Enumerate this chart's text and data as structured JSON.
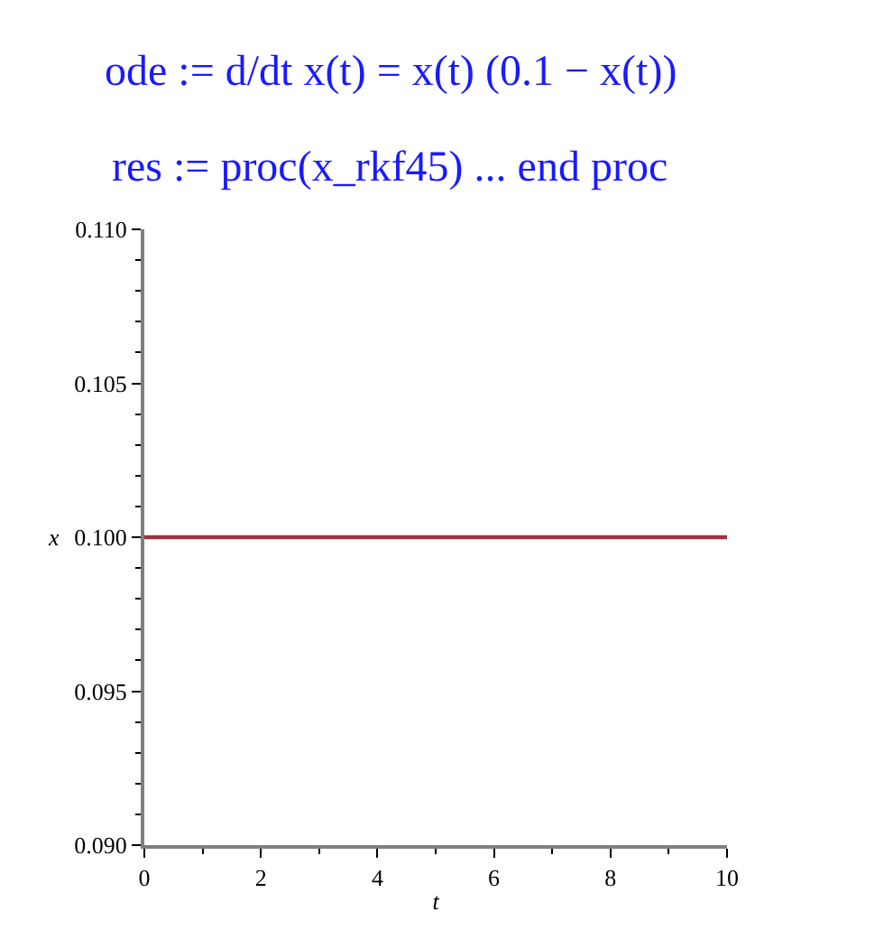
{
  "chart_data": {
    "type": "line",
    "title": "ode := d/dt x(t) = x(t) (0.1 − x(t))",
    "subtitle": "res := proc(x_rkf45) ... end proc",
    "xlabel": "t",
    "ylabel": "x",
    "x": [
      0,
      10
    ],
    "series": [
      {
        "color": "#993340",
        "values": [
          0.1,
          0.1
        ]
      }
    ],
    "line_style": "solid",
    "xlim": [
      0,
      10
    ],
    "xticks": [
      0,
      {
        "value": 1,
        "label": null
      },
      2,
      {
        "value": 3,
        "label": null
      },
      4,
      {
        "value": 5,
        "label": null
      },
      6,
      {
        "value": 7,
        "label": null
      },
      8,
      {
        "value": 9,
        "label": null
      },
      10
    ],
    "ylim": [
      0.09,
      0.11
    ],
    "yticks": [
      {
        "value": 0.09,
        "label": "0.090"
      },
      {
        "value": 0.091,
        "label": null
      },
      {
        "value": 0.092,
        "label": null
      },
      {
        "value": 0.093,
        "label": null
      },
      {
        "value": 0.094,
        "label": null
      },
      {
        "value": 0.095,
        "label": "0.095"
      },
      {
        "value": 0.096,
        "label": null
      },
      {
        "value": 0.097,
        "label": null
      },
      {
        "value": 0.098,
        "label": null
      },
      {
        "value": 0.099,
        "label": null
      },
      {
        "value": 0.1,
        "label": "0.100"
      },
      {
        "value": 0.101,
        "label": null
      },
      {
        "value": 0.102,
        "label": null
      },
      {
        "value": 0.103,
        "label": null
      },
      {
        "value": 0.104,
        "label": null
      },
      {
        "value": 0.105,
        "label": "0.105"
      },
      {
        "value": 0.106,
        "label": null
      },
      {
        "value": 0.107,
        "label": null
      },
      {
        "value": 0.108,
        "label": null
      },
      {
        "value": 0.109,
        "label": null
      },
      {
        "value": 0.11,
        "label": "0.110"
      }
    ]
  }
}
